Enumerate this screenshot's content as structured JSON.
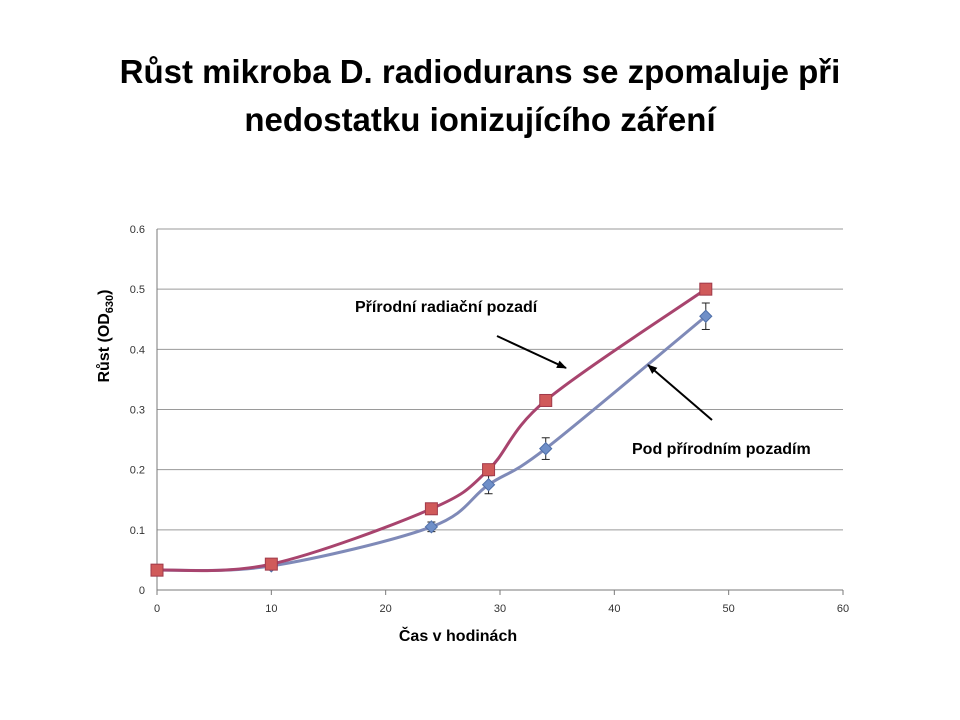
{
  "title_lines": [
    "Růst mikroba D. radiodurans se zpomaluje při",
    "nedostatku ionizujícího záření"
  ],
  "chart_data": {
    "type": "line",
    "title": "",
    "xlabel": "Čas v hodinách",
    "ylabel": "Růst (OD630)",
    "ylabel_main": "Růst (OD",
    "ylabel_sub": "630",
    "ylabel_close": ")",
    "xlim": [
      0,
      60
    ],
    "ylim": [
      0,
      0.6
    ],
    "xticks": [
      0,
      10,
      20,
      30,
      40,
      50,
      60
    ],
    "yticks": [
      0,
      0.1,
      0.2,
      0.3,
      0.4,
      0.5,
      0.6
    ],
    "ytick_labels": [
      "0",
      "0.1",
      "0.2",
      "0.3",
      "0.4",
      "0.5",
      "0.6"
    ],
    "grid": true,
    "legend": "none",
    "series": [
      {
        "name": "Přírodní  radiační pozadí",
        "color": "#a8446e",
        "marker": "square",
        "marker_color": "#d05a5a",
        "x": [
          0,
          10,
          24,
          29,
          34,
          48
        ],
        "y": [
          0.033,
          0.043,
          0.135,
          0.2,
          0.315,
          0.5
        ]
      },
      {
        "name": "Pod přírodním pozadím",
        "color": "#7f8ab8",
        "marker": "diamond",
        "marker_color": "#6f8fc8",
        "x": [
          0,
          10,
          24,
          29,
          34,
          48
        ],
        "y": [
          0.033,
          0.04,
          0.105,
          0.175,
          0.235,
          0.455
        ],
        "error": [
          0,
          0,
          0.008,
          0.015,
          0.018,
          0.022
        ]
      }
    ],
    "annotations": [
      {
        "text": "Přírodní  radiační pozadí",
        "points_to_series": 0
      },
      {
        "text": "Pod přírodním pozadím",
        "points_to_series": 1
      }
    ]
  }
}
